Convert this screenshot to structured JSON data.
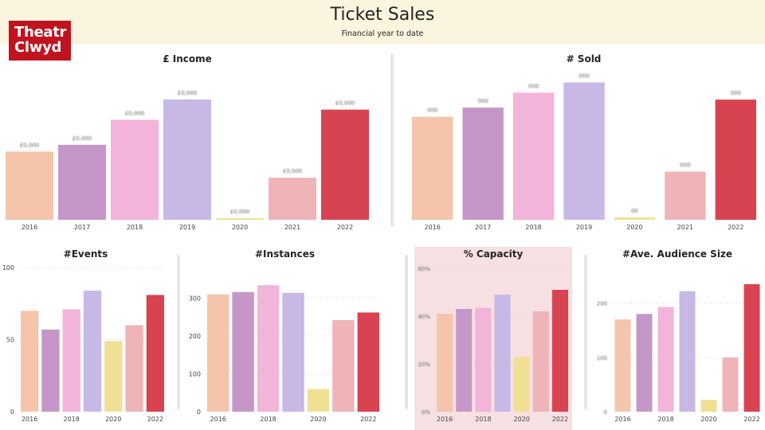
{
  "header": {
    "title": "Ticket Sales",
    "subtitle": "Financial year to date"
  },
  "logo": {
    "line1": "Theatr",
    "line2": "Clwyd"
  },
  "colors": {
    "2016": "#f4c4ab",
    "2017": "#c597c8",
    "2018": "#f2b4d8",
    "2019": "#c8b8e6",
    "2020": "#efe096",
    "2021": "#efb4b8",
    "2022": "#d84351",
    "highlight_bg": "#f7e0e2",
    "header_bg": "#fbf4de",
    "logo_red": "#c1121f"
  },
  "charts": {
    "income": {
      "title": "£ Income",
      "years": [
        "2016",
        "2017",
        "2018",
        "2019",
        "2020",
        "2021",
        "2022"
      ],
      "values": [
        60,
        66,
        88,
        106,
        1,
        37,
        97
      ],
      "ylim": [
        0,
        115
      ],
      "data_labels": [
        "£0,000",
        "£0,000",
        "£0,000",
        "£0,000",
        "£0,000",
        "£0,000",
        "£0,000"
      ],
      "labels_obscured": true
    },
    "sold": {
      "title": "# Sold",
      "years": [
        "2016",
        "2017",
        "2018",
        "2019",
        "2020",
        "2021",
        "2022"
      ],
      "values": [
        90,
        98,
        111,
        120,
        2,
        42,
        105
      ],
      "ylim": [
        0,
        128
      ],
      "data_labels": [
        "000",
        "000",
        "000",
        "000",
        "00",
        "000",
        "000"
      ],
      "labels_obscured": true
    },
    "events": {
      "title": "#Events",
      "years": [
        "2016",
        "2017",
        "2018",
        "2019",
        "2020",
        "2021",
        "2022"
      ],
      "values": [
        70,
        57,
        71,
        84,
        49,
        60,
        81
      ],
      "ylim": [
        0,
        100
      ],
      "yticks": [
        "0",
        "50",
        "100"
      ],
      "xticks": [
        "2016",
        "2018",
        "2020",
        "2022"
      ]
    },
    "instances": {
      "title": "#Instances",
      "years": [
        "2016",
        "2017",
        "2018",
        "2019",
        "2020",
        "2021",
        "2022"
      ],
      "values": [
        310,
        316,
        334,
        314,
        60,
        242,
        262
      ],
      "ylim": [
        0,
        345
      ],
      "yticks": [
        "0",
        "100",
        "200",
        "300"
      ],
      "xticks": [
        "2016",
        "2018",
        "2020",
        "2022"
      ]
    },
    "capacity": {
      "title": "% Capacity",
      "years": [
        "2016",
        "2017",
        "2018",
        "2019",
        "2020",
        "2021",
        "2022"
      ],
      "values": [
        0.41,
        0.43,
        0.435,
        0.49,
        0.23,
        0.42,
        0.51
      ],
      "ylim": [
        0,
        0.6
      ],
      "yticks": [
        "0%",
        "20%",
        "40%",
        "60%"
      ],
      "xticks": [
        "2016",
        "2018",
        "2020",
        "2022"
      ],
      "labels_obscured": true
    },
    "audience": {
      "title": "#Ave. Audience Size",
      "years": [
        "2016",
        "2017",
        "2018",
        "2019",
        "2020",
        "2021",
        "2022"
      ],
      "values": [
        170,
        180,
        193,
        222,
        22,
        100,
        235
      ],
      "ylim": [
        0,
        245
      ],
      "yticks": [
        "0",
        "100",
        "200"
      ],
      "xticks": [
        "2016",
        "2018",
        "2020",
        "2022"
      ],
      "labels_obscured": true
    }
  }
}
